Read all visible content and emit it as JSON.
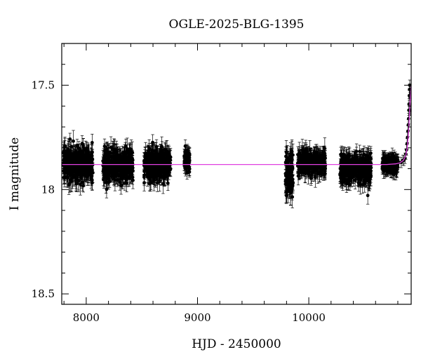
{
  "chart_data": {
    "type": "scatter",
    "title": "OGLE-2025-BLG-1395",
    "xlabel": "HJD - 2450000",
    "ylabel": "I magnitude",
    "xlim": [
      7780,
      10920
    ],
    "ylim": [
      18.55,
      17.3
    ],
    "y_inverted": true,
    "x_ticks": [
      8000,
      9000,
      10000
    ],
    "y_ticks": [
      17.5,
      18,
      18.5
    ],
    "x_tick_labels": [
      "8000",
      "9000",
      "10000"
    ],
    "y_tick_labels": [
      "17.5",
      "18",
      "18.5"
    ],
    "grid": false,
    "legend": "none",
    "colors": {
      "points": "#000000",
      "model": "#e040e0",
      "axes": "#000000"
    },
    "observing_seasons": [
      {
        "x_start": 7790,
        "x_end": 8060,
        "mean_mag": 17.88,
        "scatter": 0.06,
        "error": 0.04
      },
      {
        "x_start": 8150,
        "x_end": 8420,
        "mean_mag": 17.88,
        "scatter": 0.06,
        "error": 0.04
      },
      {
        "x_start": 8520,
        "x_end": 8760,
        "mean_mag": 17.88,
        "scatter": 0.06,
        "error": 0.04
      },
      {
        "x_start": 8880,
        "x_end": 8930,
        "mean_mag": 17.86,
        "scatter": 0.04,
        "error": 0.03
      },
      {
        "x_start": 9790,
        "x_end": 9860,
        "mean_mag": 17.94,
        "scatter": 0.1,
        "error": 0.05
      },
      {
        "x_start": 9900,
        "x_end": 10150,
        "mean_mag": 17.87,
        "scatter": 0.04,
        "error": 0.04
      },
      {
        "x_start": 10280,
        "x_end": 10560,
        "mean_mag": 17.9,
        "scatter": 0.05,
        "error": 0.04
      },
      {
        "x_start": 10660,
        "x_end": 10800,
        "mean_mag": 17.88,
        "scatter": 0.03,
        "error": 0.03
      }
    ],
    "event_points": [
      [
        10810,
        17.87
      ],
      [
        10830,
        17.87
      ],
      [
        10845,
        17.86
      ],
      [
        10855,
        17.86
      ],
      [
        10865,
        17.85
      ],
      [
        10872,
        17.83
      ],
      [
        10878,
        17.81
      ],
      [
        10883,
        17.78
      ],
      [
        10887,
        17.75
      ],
      [
        10891,
        17.72
      ],
      [
        10894,
        17.69
      ],
      [
        10897,
        17.66
      ],
      [
        10899,
        17.62
      ],
      [
        10901,
        17.59
      ],
      [
        10903,
        17.55
      ],
      [
        10905,
        17.52
      ],
      [
        10907,
        17.5
      ],
      [
        10909,
        17.52
      ],
      [
        10911,
        17.56
      ],
      [
        10913,
        17.62
      ]
    ],
    "model_curve": [
      [
        7780,
        17.88
      ],
      [
        10700,
        17.88
      ],
      [
        10780,
        17.877
      ],
      [
        10820,
        17.872
      ],
      [
        10850,
        17.86
      ],
      [
        10870,
        17.84
      ],
      [
        10885,
        17.8
      ],
      [
        10895,
        17.74
      ],
      [
        10903,
        17.66
      ],
      [
        10910,
        17.58
      ],
      [
        10916,
        17.53
      ],
      [
        10920,
        17.5
      ]
    ]
  }
}
